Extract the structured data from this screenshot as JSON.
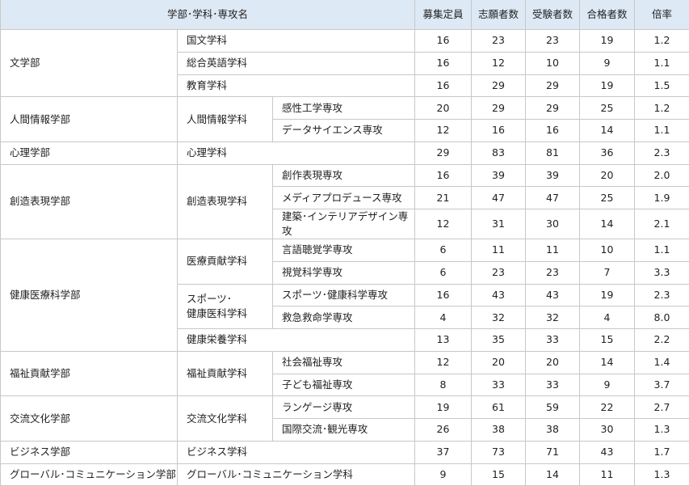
{
  "header": {
    "name_col": "学部･学科･専攻名",
    "columns": [
      "募集定員",
      "志願者数",
      "受験者数",
      "合格者数",
      "倍率"
    ]
  },
  "rows": [
    {
      "faculty": {
        "text": "文学部",
        "span": 3
      },
      "dept": {
        "text": "国文学科",
        "span": 1,
        "wide": true
      },
      "values": [
        "16",
        "23",
        "23",
        "19",
        "1.2"
      ]
    },
    {
      "dept": {
        "text": "総合英語学科",
        "span": 1,
        "wide": true
      },
      "values": [
        "16",
        "12",
        "10",
        "9",
        "1.1"
      ]
    },
    {
      "dept": {
        "text": "教育学科",
        "span": 1,
        "wide": true
      },
      "values": [
        "16",
        "29",
        "29",
        "19",
        "1.5"
      ]
    },
    {
      "faculty": {
        "text": "人間情報学部",
        "span": 2
      },
      "dept": {
        "text": "人間情報学科",
        "span": 2
      },
      "major": "感性工学専攻",
      "values": [
        "20",
        "29",
        "29",
        "25",
        "1.2"
      ]
    },
    {
      "major": "データサイエンス専攻",
      "values": [
        "12",
        "16",
        "16",
        "14",
        "1.1"
      ]
    },
    {
      "faculty": {
        "text": "心理学部",
        "span": 1
      },
      "dept": {
        "text": "心理学科",
        "span": 1,
        "wide": true
      },
      "values": [
        "29",
        "83",
        "81",
        "36",
        "2.3"
      ]
    },
    {
      "faculty": {
        "text": "創造表現学部",
        "span": 3
      },
      "dept": {
        "text": "創造表現学科",
        "span": 3
      },
      "major": "創作表現専攻",
      "values": [
        "16",
        "39",
        "39",
        "20",
        "2.0"
      ]
    },
    {
      "major": "メディアプロデュース専攻",
      "values": [
        "21",
        "47",
        "47",
        "25",
        "1.9"
      ]
    },
    {
      "major": "建築･インテリアデザイン専攻",
      "values": [
        "12",
        "31",
        "30",
        "14",
        "2.1"
      ]
    },
    {
      "faculty": {
        "text": "健康医療科学部",
        "span": 5
      },
      "dept": {
        "text": "医療貢献学科",
        "span": 2
      },
      "major": "言語聴覚学専攻",
      "values": [
        "6",
        "11",
        "11",
        "10",
        "1.1"
      ]
    },
    {
      "major": "視覚科学専攻",
      "values": [
        "6",
        "23",
        "23",
        "7",
        "3.3"
      ]
    },
    {
      "dept": {
        "text": "スポーツ･\n健康医科学科",
        "span": 2
      },
      "major": "スポーツ･健康科学専攻",
      "values": [
        "16",
        "43",
        "43",
        "19",
        "2.3"
      ]
    },
    {
      "major": "救急救命学専攻",
      "values": [
        "4",
        "32",
        "32",
        "4",
        "8.0"
      ]
    },
    {
      "dept": {
        "text": "健康栄養学科",
        "span": 1,
        "wide": true
      },
      "values": [
        "13",
        "35",
        "33",
        "15",
        "2.2"
      ]
    },
    {
      "faculty": {
        "text": "福祉貢献学部",
        "span": 2
      },
      "dept": {
        "text": "福祉貢献学科",
        "span": 2
      },
      "major": "社会福祉専攻",
      "values": [
        "12",
        "20",
        "20",
        "14",
        "1.4"
      ]
    },
    {
      "major": "子ども福祉専攻",
      "values": [
        "8",
        "33",
        "33",
        "9",
        "3.7"
      ]
    },
    {
      "faculty": {
        "text": "交流文化学部",
        "span": 2
      },
      "dept": {
        "text": "交流文化学科",
        "span": 2
      },
      "major": "ランゲージ専攻",
      "values": [
        "19",
        "61",
        "59",
        "22",
        "2.7"
      ]
    },
    {
      "major": "国際交流･観光専攻",
      "values": [
        "26",
        "38",
        "38",
        "30",
        "1.3"
      ]
    },
    {
      "faculty": {
        "text": "ビジネス学部",
        "span": 1
      },
      "dept": {
        "text": "ビジネス学科",
        "span": 1,
        "wide": true
      },
      "values": [
        "37",
        "73",
        "71",
        "43",
        "1.7"
      ]
    },
    {
      "faculty": {
        "text": "グローバル･コミュニケーション学部",
        "span": 1
      },
      "dept": {
        "text": "グローバル･コミュニケーション学科",
        "span": 1,
        "wide": true
      },
      "values": [
        "9",
        "15",
        "14",
        "11",
        "1.3"
      ]
    }
  ]
}
